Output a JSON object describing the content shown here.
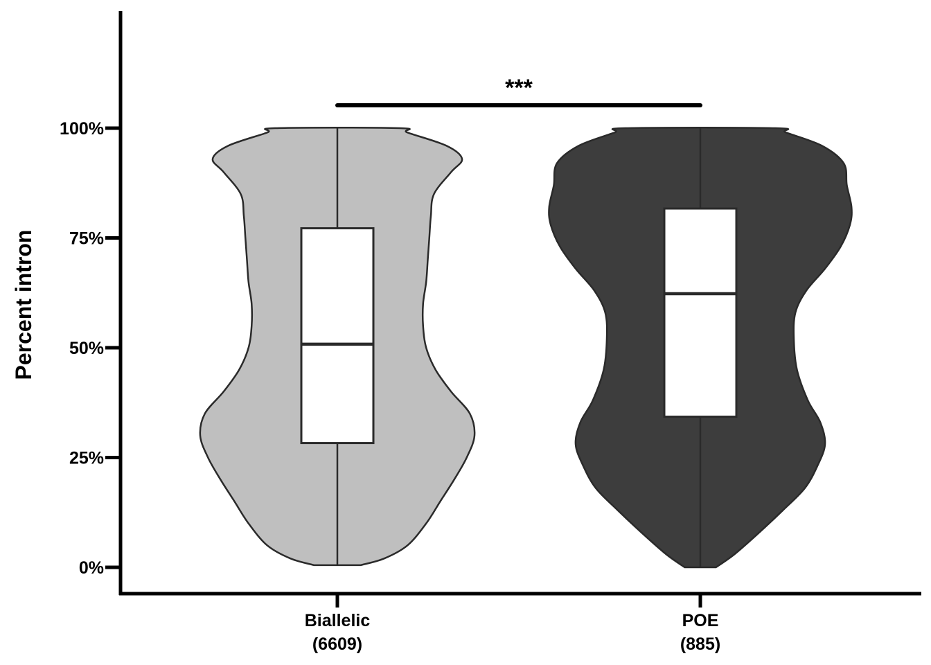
{
  "chart_data": {
    "type": "violin",
    "ylabel": "Percent intron",
    "ylim": [
      0,
      100
    ],
    "yticks": [
      0,
      25,
      50,
      75,
      100
    ],
    "ytick_labels": [
      "0%",
      "25%",
      "50%",
      "75%",
      "100%"
    ],
    "grid": false,
    "categories": [
      {
        "label": "Biallelic",
        "count": "(6609)"
      },
      {
        "label": "POE",
        "count": "(885)"
      }
    ],
    "series": [
      {
        "fill_color": "#bfbfbf",
        "box": {
          "q1": 28.3,
          "median": 50.8,
          "q3": 77.2,
          "min": 0.5,
          "max": 100
        },
        "density_profile": [
          [
            0.5,
            0.15
          ],
          [
            2,
            0.3
          ],
          [
            5,
            0.45
          ],
          [
            10,
            0.57
          ],
          [
            15,
            0.66
          ],
          [
            20,
            0.75
          ],
          [
            25,
            0.83
          ],
          [
            30,
            0.88
          ],
          [
            35,
            0.85
          ],
          [
            40,
            0.73
          ],
          [
            45,
            0.63
          ],
          [
            50,
            0.57
          ],
          [
            55,
            0.55
          ],
          [
            60,
            0.55
          ],
          [
            65,
            0.57
          ],
          [
            70,
            0.58
          ],
          [
            75,
            0.59
          ],
          [
            80,
            0.6
          ],
          [
            85,
            0.62
          ],
          [
            90,
            0.73
          ],
          [
            93,
            0.8
          ],
          [
            96,
            0.7
          ],
          [
            99,
            0.45
          ],
          [
            100,
            0.4
          ]
        ]
      },
      {
        "fill_color": "#3d3d3d",
        "box": {
          "q1": 34.3,
          "median": 62.3,
          "q3": 81.7,
          "min": 0,
          "max": 100
        },
        "density_profile": [
          [
            0,
            0.1
          ],
          [
            3,
            0.22
          ],
          [
            8,
            0.38
          ],
          [
            13,
            0.53
          ],
          [
            18,
            0.67
          ],
          [
            23,
            0.75
          ],
          [
            28,
            0.8
          ],
          [
            33,
            0.77
          ],
          [
            38,
            0.69
          ],
          [
            45,
            0.62
          ],
          [
            52,
            0.6
          ],
          [
            58,
            0.61
          ],
          [
            63,
            0.68
          ],
          [
            68,
            0.8
          ],
          [
            73,
            0.9
          ],
          [
            78,
            0.96
          ],
          [
            82,
            0.97
          ],
          [
            87,
            0.94
          ],
          [
            92,
            0.92
          ],
          [
            96,
            0.78
          ],
          [
            99,
            0.55
          ],
          [
            100,
            0.48
          ]
        ]
      }
    ],
    "significance": {
      "between": [
        0,
        1
      ],
      "label": "***"
    },
    "colors": {
      "outline": "#2a2a2a",
      "box_fill": "#ffffff",
      "axis": "#000000"
    }
  }
}
